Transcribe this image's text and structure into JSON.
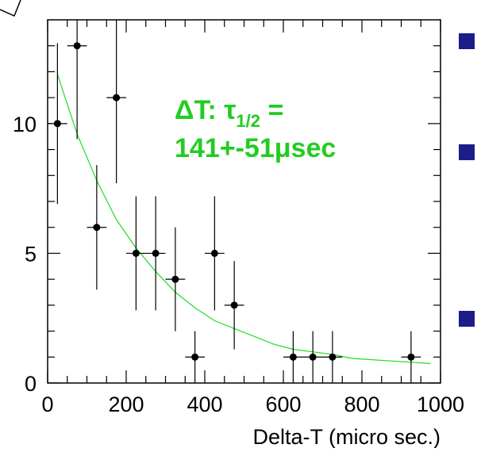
{
  "chart_data": {
    "type": "scatter",
    "title": "",
    "xlabel": "Delta-T (micro sec.)",
    "ylabel": "",
    "xlim": [
      0,
      1000
    ],
    "ylim": [
      0,
      14
    ],
    "x_ticks": [
      0,
      200,
      400,
      600,
      800,
      1000
    ],
    "y_ticks": [
      0,
      5,
      10
    ],
    "annotation": {
      "delta": "ΔT: ",
      "tau": "τ",
      "tau_sub": "1/2",
      "equals": " =",
      "value": "141+-51",
      "mu": "μ",
      "unit": "sec"
    },
    "series": [
      {
        "color": "#000000",
        "points": [
          {
            "x": 25,
            "y": 10,
            "xerr": 25,
            "ylo": 6.9,
            "yhi": 13.1
          },
          {
            "x": 75,
            "y": 13,
            "xerr": 25,
            "ylo": 9.4,
            "yhi": 16.6
          },
          {
            "x": 125,
            "y": 6,
            "xerr": 25,
            "ylo": 3.6,
            "yhi": 8.4
          },
          {
            "x": 175,
            "y": 11,
            "xerr": 25,
            "ylo": 7.7,
            "yhi": 14.3
          },
          {
            "x": 225,
            "y": 5,
            "xerr": 25,
            "ylo": 2.8,
            "yhi": 7.2
          },
          {
            "x": 275,
            "y": 5,
            "xerr": 25,
            "ylo": 2.8,
            "yhi": 7.2
          },
          {
            "x": 325,
            "y": 4,
            "xerr": 25,
            "ylo": 2.0,
            "yhi": 6.0
          },
          {
            "x": 375,
            "y": 1,
            "xerr": 25,
            "ylo": 0.0,
            "yhi": 2.0
          },
          {
            "x": 425,
            "y": 5,
            "xerr": 25,
            "ylo": 2.8,
            "yhi": 7.2
          },
          {
            "x": 475,
            "y": 3,
            "xerr": 25,
            "ylo": 1.3,
            "yhi": 4.7
          },
          {
            "x": 625,
            "y": 1,
            "xerr": 25,
            "ylo": 0.0,
            "yhi": 2.0
          },
          {
            "x": 675,
            "y": 1,
            "xerr": 25,
            "ylo": 0.0,
            "yhi": 2.0
          },
          {
            "x": 725,
            "y": 1,
            "xerr": 25,
            "ylo": 0.0,
            "yhi": 2.0
          },
          {
            "x": 925,
            "y": 1,
            "xerr": 25,
            "ylo": 0.0,
            "yhi": 2.0
          }
        ]
      }
    ],
    "fit": {
      "color": "#22dd22",
      "x": [
        25,
        75,
        125,
        175,
        225,
        275,
        325,
        375,
        425,
        475,
        525,
        575,
        625,
        675,
        725,
        775,
        825,
        875,
        925,
        975
      ],
      "y": [
        11.9,
        9.6,
        7.8,
        6.3,
        5.2,
        4.3,
        3.5,
        2.9,
        2.4,
        2.1,
        1.8,
        1.5,
        1.3,
        1.2,
        1.1,
        0.95,
        0.9,
        0.85,
        0.8,
        0.75
      ]
    }
  },
  "colors": {
    "axis": "#000000",
    "fit_curve": "#22dd22",
    "annotation": "#22cc22",
    "bullet": "#1c1c8a"
  }
}
